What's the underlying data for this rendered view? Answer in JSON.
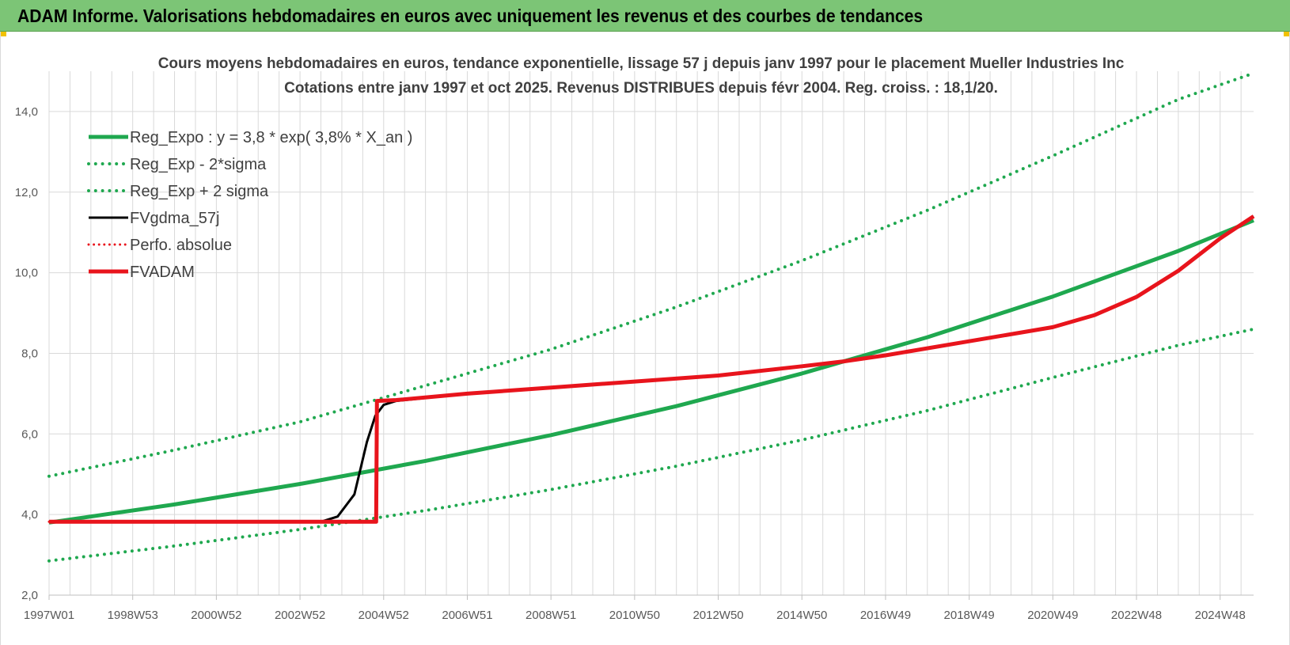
{
  "banner": {
    "title": "ADAM Informe. Valorisations hebdomadaires en euros avec uniquement les revenus et des courbes de tendances"
  },
  "colors": {
    "banner_bg": "#7cc576",
    "green": "#1fa84f",
    "black": "#000000",
    "red": "#e8141c",
    "grid": "#d9d9d9",
    "corner": "#f2c200"
  },
  "chart_data": {
    "type": "line",
    "title": "Cours moyens hebdomadaires en euros, tendance exponentielle, lissage 57 j depuis janv 1997 pour le placement Mueller Industries Inc",
    "subtitle": "Cotations entre janv 1997 et oct 2025. Revenus DISTRIBUES depuis févr 2004. Reg. croiss. : 18,1/20.",
    "xlabel": "",
    "ylabel": "",
    "xlim": [
      1997.0,
      2025.8
    ],
    "ylim": [
      2.0,
      15.0
    ],
    "grid": true,
    "legend_position": "top-left",
    "x_ticks": [
      {
        "label": "1997W01",
        "x": 1997.0
      },
      {
        "label": "1998W53",
        "x": 1999.0
      },
      {
        "label": "2000W52",
        "x": 2001.0
      },
      {
        "label": "2002W52",
        "x": 2003.0
      },
      {
        "label": "2004W52",
        "x": 2005.0
      },
      {
        "label": "2006W51",
        "x": 2007.0
      },
      {
        "label": "2008W51",
        "x": 2009.0
      },
      {
        "label": "2010W50",
        "x": 2011.0
      },
      {
        "label": "2012W50",
        "x": 2013.0
      },
      {
        "label": "2014W50",
        "x": 2015.0
      },
      {
        "label": "2016W49",
        "x": 2017.0
      },
      {
        "label": "2018W49",
        "x": 2019.0
      },
      {
        "label": "2020W49",
        "x": 2021.0
      },
      {
        "label": "2022W48",
        "x": 2023.0
      },
      {
        "label": "2024W48",
        "x": 2025.0
      }
    ],
    "y_ticks": [
      "2,0",
      "4,0",
      "6,0",
      "8,0",
      "10,0",
      "12,0",
      "14,0"
    ],
    "y_tick_values": [
      2,
      4,
      6,
      8,
      10,
      12,
      14
    ],
    "series": [
      {
        "name": "Reg_Expo : y = 3,8 * exp( 3,8% *  X_an )",
        "style": "solid",
        "color": "#1fa84f",
        "width": 5,
        "x": [
          1997.0,
          2000.0,
          2003.0,
          2006.0,
          2009.0,
          2012.0,
          2015.0,
          2018.0,
          2021.0,
          2024.0,
          2025.8
        ],
        "y": [
          3.8,
          4.25,
          4.76,
          5.33,
          5.97,
          6.69,
          7.5,
          8.4,
          9.41,
          10.54,
          11.3
        ]
      },
      {
        "name": "Reg_Exp - 2*sigma",
        "style": "dotted",
        "color": "#1fa84f",
        "width": 4,
        "x": [
          1997.0,
          2000.0,
          2003.0,
          2006.0,
          2009.0,
          2012.0,
          2015.0,
          2018.0,
          2021.0,
          2024.0,
          2025.8
        ],
        "y": [
          2.85,
          3.22,
          3.63,
          4.1,
          4.62,
          5.2,
          5.85,
          6.58,
          7.4,
          8.2,
          8.6
        ]
      },
      {
        "name": "Reg_Exp + 2 sigma",
        "style": "dotted",
        "color": "#1fa84f",
        "width": 4,
        "x": [
          1997.0,
          2000.0,
          2003.0,
          2006.0,
          2009.0,
          2012.0,
          2015.0,
          2018.0,
          2021.0,
          2024.0,
          2025.8
        ],
        "y": [
          4.95,
          5.6,
          6.3,
          7.2,
          8.1,
          9.15,
          10.3,
          11.55,
          12.9,
          14.3,
          14.95
        ]
      },
      {
        "name": "FVgdma_57j",
        "style": "solid",
        "color": "#000000",
        "width": 3,
        "x": [
          1997.0,
          2003.5,
          2003.9,
          2004.3,
          2004.6,
          2004.8,
          2005.0,
          2005.3,
          2005.7,
          2007.0,
          2009.0,
          2011.0,
          2013.0,
          2015.0,
          2016.0,
          2017.0,
          2019.0,
          2021.0,
          2022.0,
          2023.0,
          2024.0,
          2025.0,
          2025.8
        ],
        "y": [
          3.82,
          3.82,
          3.95,
          4.5,
          5.8,
          6.45,
          6.72,
          6.82,
          6.86,
          7.0,
          7.15,
          7.3,
          7.45,
          7.68,
          7.8,
          7.95,
          8.3,
          8.65,
          8.95,
          9.4,
          10.05,
          10.85,
          11.4
        ]
      },
      {
        "name": "Perfo. absolue",
        "style": "dotted",
        "color": "#e8141c",
        "width": 3,
        "x": [
          1997.0,
          2004.82,
          2004.84,
          2005.3,
          2007.0,
          2009.0,
          2011.0,
          2013.0,
          2015.0,
          2016.0,
          2017.0,
          2019.0,
          2021.0,
          2022.0,
          2023.0,
          2024.0,
          2025.0,
          2025.8
        ],
        "y": [
          3.82,
          3.82,
          6.82,
          6.84,
          7.0,
          7.15,
          7.3,
          7.45,
          7.68,
          7.8,
          7.95,
          8.3,
          8.65,
          8.95,
          9.4,
          10.05,
          10.85,
          11.4
        ]
      },
      {
        "name": "FVADAM",
        "style": "solid",
        "color": "#e8141c",
        "width": 5,
        "x": [
          1997.0,
          2004.82,
          2004.84,
          2005.3,
          2007.0,
          2009.0,
          2011.0,
          2013.0,
          2015.0,
          2016.0,
          2017.0,
          2019.0,
          2021.0,
          2022.0,
          2023.0,
          2024.0,
          2025.0,
          2025.8
        ],
        "y": [
          3.82,
          3.82,
          6.82,
          6.84,
          7.0,
          7.15,
          7.3,
          7.45,
          7.68,
          7.8,
          7.95,
          8.3,
          8.65,
          8.95,
          9.4,
          10.05,
          10.85,
          11.4
        ]
      }
    ]
  }
}
